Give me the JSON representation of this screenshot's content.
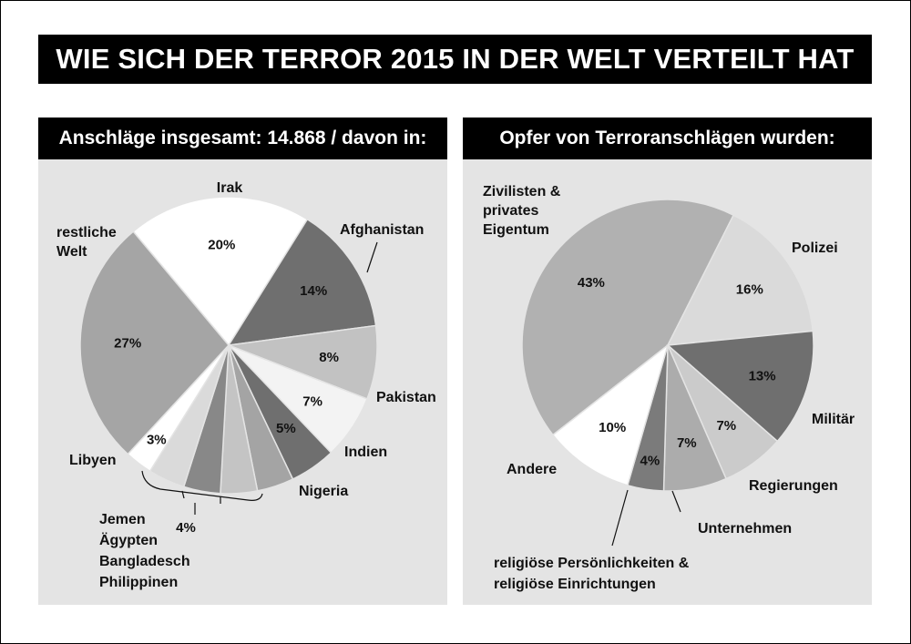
{
  "title": "WIE SICH DER TERROR 2015 IN DER WELT VERTEILT HAT",
  "panels": {
    "left_header": "Anschläge insgesamt: 14.868 / davon in:",
    "right_header": "Opfer von Terroranschlägen wurden:"
  },
  "chart_data": [
    {
      "type": "pie",
      "title": "Anschläge insgesamt: 14.868 / davon in:",
      "total": "14.868",
      "slices": [
        {
          "label": "Irak",
          "value": 20,
          "value_label": "20%",
          "color": "#ffffff"
        },
        {
          "label": "Afghanistan",
          "value": 14,
          "value_label": "14%",
          "color": "#6f6f6f"
        },
        {
          "label": "Pakistan",
          "value": 8,
          "value_label": "8%",
          "color": "#c2c2c2"
        },
        {
          "label": "Indien",
          "value": 7,
          "value_label": "7%",
          "color": "#f3f3f3"
        },
        {
          "label": "Nigeria",
          "value": 5,
          "value_label": "5%",
          "color": "#6f6f6f"
        },
        {
          "label": "Philippinen",
          "value": 4,
          "value_label": "",
          "color": "#a4a4a4"
        },
        {
          "label": "Bangladesch",
          "value": 4,
          "value_label": "",
          "color": "#c4c4c4"
        },
        {
          "label": "Ägypten",
          "value": 4,
          "value_label": "",
          "color": "#888888"
        },
        {
          "label": "Jemen",
          "value": 4,
          "value_label": "",
          "color": "#dadada"
        },
        {
          "label": "Libyen",
          "value": 3,
          "value_label": "3%",
          "color": "#ffffff"
        },
        {
          "label": "restliche Welt",
          "value": 27,
          "value_label": "27%",
          "color": "#a5a5a5"
        }
      ],
      "group_label": {
        "items": [
          "Jemen",
          "Ägypten",
          "Bangladesch",
          "Philippinen"
        ],
        "value_label": "4%"
      }
    },
    {
      "type": "pie",
      "title": "Opfer von Terroranschlägen wurden:",
      "slices": [
        {
          "label": "Zivilisten & privates Eigentum",
          "value": 43,
          "value_label": "43%",
          "color": "#b1b1b1"
        },
        {
          "label": "Polizei",
          "value": 16,
          "value_label": "16%",
          "color": "#dadada"
        },
        {
          "label": "Militär",
          "value": 13,
          "value_label": "13%",
          "color": "#6f6f6f"
        },
        {
          "label": "Regierungen",
          "value": 7,
          "value_label": "7%",
          "color": "#cbcbcb"
        },
        {
          "label": "Unternehmen",
          "value": 7,
          "value_label": "7%",
          "color": "#acacac"
        },
        {
          "label": "religiöse Persönlichkeiten & religiöse Einrichtungen",
          "value": 4,
          "value_label": "4%",
          "color": "#7b7b7b"
        },
        {
          "label": "Andere",
          "value": 10,
          "value_label": "10%",
          "color": "#ffffff"
        }
      ]
    }
  ],
  "left_labels": {
    "irak": "Irak",
    "afghanistan": "Afghanistan",
    "pakistan": "Pakistan",
    "indien": "Indien",
    "nigeria": "Nigeria",
    "libyen": "Libyen",
    "rest_line1": "restliche",
    "rest_line2": "Welt",
    "group_lines": [
      "Jemen",
      "Ägypten",
      "Bangladesch",
      "Philippinen"
    ],
    "group_value": "4%"
  },
  "right_labels": {
    "zivil_lines": [
      "Zivilisten &",
      "privates",
      "Eigentum"
    ],
    "polizei": "Polizei",
    "militaer": "Militär",
    "regierungen": "Regierungen",
    "unternehmen": "Unternehmen",
    "religion_lines": [
      "religiöse Persönlichkeiten &",
      "religiöse Einrichtungen"
    ],
    "andere": "Andere"
  }
}
